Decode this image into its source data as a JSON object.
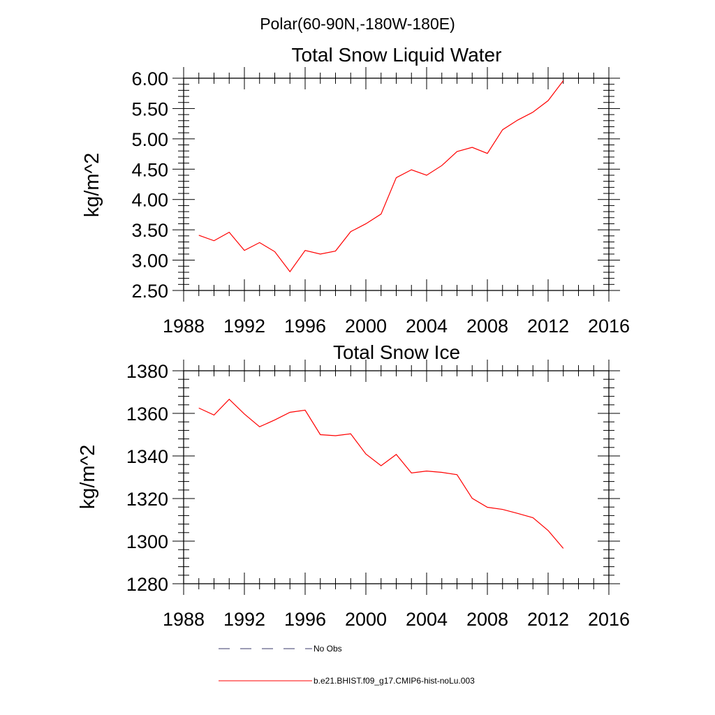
{
  "suptitle": "Polar(60-90N,-180W-180E)",
  "chart_data": [
    {
      "type": "line",
      "title": "Total Snow Liquid Water",
      "ylabel": "kg/m^2",
      "xlim": [
        1988,
        2016
      ],
      "ylim": [
        2.5,
        6.0
      ],
      "xticks": [
        "1988",
        "1992",
        "1996",
        "2000",
        "2004",
        "2008",
        "2012",
        "2016"
      ],
      "yticks": [
        "2.50",
        "3.00",
        "3.50",
        "4.00",
        "4.50",
        "5.00",
        "5.50",
        "6.00"
      ],
      "x": [
        1989,
        1990,
        1991,
        1992,
        1993,
        1994,
        1995,
        1996,
        1997,
        1998,
        1999,
        2000,
        2001,
        2002,
        2003,
        2004,
        2005,
        2006,
        2007,
        2008,
        2009,
        2010,
        2011,
        2012,
        2013
      ],
      "series": [
        {
          "name": "b.e21.BHIST.f09_g17.CMIP6-hist-noLu.003",
          "color": "#ff0000",
          "values": [
            3.41,
            3.32,
            3.46,
            3.16,
            3.29,
            3.14,
            2.81,
            3.16,
            3.1,
            3.15,
            3.47,
            3.6,
            3.76,
            4.36,
            4.49,
            4.4,
            4.56,
            4.79,
            4.86,
            4.76,
            5.15,
            5.31,
            5.44,
            5.63,
            5.96
          ]
        }
      ]
    },
    {
      "type": "line",
      "title": "Total Snow Ice",
      "ylabel": "kg/m^2",
      "xlim": [
        1988,
        2016
      ],
      "ylim": [
        1280,
        1380
      ],
      "xticks": [
        "1988",
        "1992",
        "1996",
        "2000",
        "2004",
        "2008",
        "2012",
        "2016"
      ],
      "yticks": [
        "1280",
        "1300",
        "1320",
        "1340",
        "1360",
        "1380"
      ],
      "x": [
        1989,
        1990,
        1991,
        1992,
        1993,
        1994,
        1995,
        1996,
        1997,
        1998,
        1999,
        2000,
        2001,
        2002,
        2003,
        2004,
        2005,
        2006,
        2007,
        2008,
        2009,
        2010,
        2011,
        2012,
        2013
      ],
      "series": [
        {
          "name": "b.e21.BHIST.f09_g17.CMIP6-hist-noLu.003",
          "color": "#ff0000",
          "values": [
            1362.5,
            1359.2,
            1366.6,
            1359.7,
            1353.7,
            1356.9,
            1360.5,
            1361.5,
            1350.0,
            1349.5,
            1350.4,
            1340.9,
            1335.4,
            1340.7,
            1332.0,
            1332.9,
            1332.3,
            1331.2,
            1320.1,
            1315.9,
            1314.9,
            1313.0,
            1311.0,
            1305.0,
            1296.6
          ]
        }
      ]
    }
  ],
  "legend": {
    "entries": [
      {
        "label": "No Obs",
        "style": "dashed",
        "color": "#3a3a6a"
      },
      {
        "label": "b.e21.BHIST.f09_g17.CMIP6-hist-noLu.003",
        "style": "solid",
        "color": "#ff0000"
      }
    ]
  }
}
